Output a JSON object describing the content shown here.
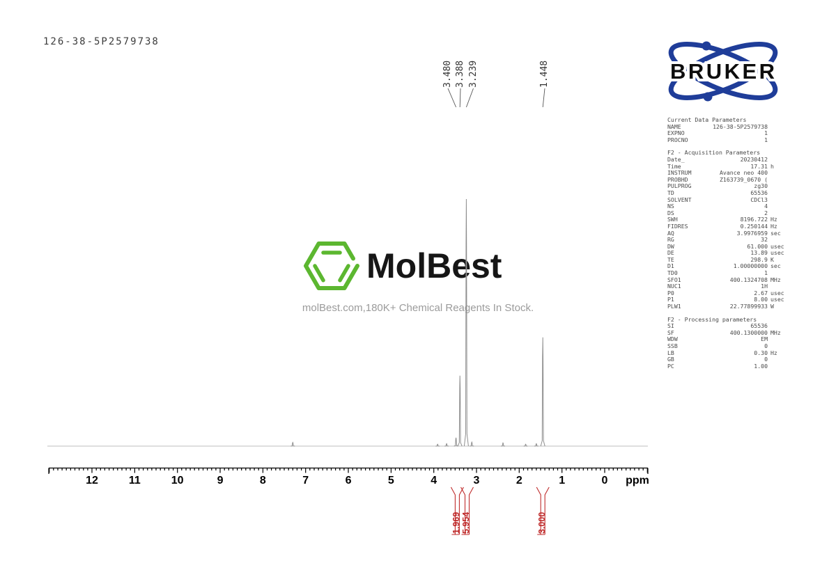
{
  "header": {
    "sample_id": "126-38-5P2579738"
  },
  "branding": {
    "bruker_wordmark": "BRUKER",
    "bruker_blue": "#1f3d99",
    "molbest_wordmark": "MolBest",
    "molbest_green": "#5cb730",
    "tagline": "molBest.com,180K+ Chemical Reagents In Stock."
  },
  "chart_data": {
    "type": "line",
    "title": "1H NMR spectrum 126-38-5P2579738",
    "xlabel": "ppm",
    "x_ticks": [
      12,
      11,
      10,
      9,
      8,
      7,
      6,
      5,
      4,
      3,
      2,
      1,
      0
    ],
    "x_range_ppm": [
      13.0,
      -1.0
    ],
    "grid": false,
    "trace_color": "#8e8e8e",
    "integral_color": "#bf2b2b",
    "peaks": [
      {
        "ppm": 7.3,
        "intensity": 0.015
      },
      {
        "ppm": 3.91,
        "intensity": 0.008
      },
      {
        "ppm": 3.7,
        "intensity": 0.01
      },
      {
        "ppm": 3.48,
        "intensity": 0.034
      },
      {
        "ppm": 3.388,
        "intensity": 0.285
      },
      {
        "ppm": 3.239,
        "intensity": 1.0
      },
      {
        "ppm": 3.11,
        "intensity": 0.016
      },
      {
        "ppm": 2.38,
        "intensity": 0.013
      },
      {
        "ppm": 1.85,
        "intensity": 0.008
      },
      {
        "ppm": 1.6,
        "intensity": 0.01
      },
      {
        "ppm": 1.448,
        "intensity": 0.44
      }
    ],
    "labeled_peaks": [
      "3.480",
      "3.388",
      "3.239",
      "1.448"
    ],
    "integrals": [
      {
        "value": "1.969",
        "ppm": 3.45
      },
      {
        "value": "5.954",
        "ppm": 3.22
      },
      {
        "value": "3.000",
        "ppm": 1.448
      }
    ]
  },
  "params": {
    "sections": [
      {
        "title": "Current Data Parameters",
        "rows": [
          {
            "l": "NAME",
            "v": "126-38-5P2579738",
            "u": ""
          },
          {
            "l": "EXPNO",
            "v": "1",
            "u": ""
          },
          {
            "l": "PROCNO",
            "v": "1",
            "u": ""
          }
        ]
      },
      {
        "title": "F2 - Acquisition Parameters",
        "rows": [
          {
            "l": "Date_",
            "v": "20230412",
            "u": ""
          },
          {
            "l": "Time",
            "v": "17.31",
            "u": "h"
          },
          {
            "l": "INSTRUM",
            "v": "Avance neo 400",
            "u": ""
          },
          {
            "l": "PROBHD",
            "v": "Z163739_0670 (",
            "u": ""
          },
          {
            "l": "PULPROG",
            "v": "zg30",
            "u": ""
          },
          {
            "l": "TD",
            "v": "65536",
            "u": ""
          },
          {
            "l": "SOLVENT",
            "v": "CDCl3",
            "u": ""
          },
          {
            "l": "NS",
            "v": "4",
            "u": ""
          },
          {
            "l": "DS",
            "v": "2",
            "u": ""
          },
          {
            "l": "SWH",
            "v": "8196.722",
            "u": "Hz"
          },
          {
            "l": "FIDRES",
            "v": "0.250144",
            "u": "Hz"
          },
          {
            "l": "AQ",
            "v": "3.9976959",
            "u": "sec"
          },
          {
            "l": "RG",
            "v": "32",
            "u": ""
          },
          {
            "l": "DW",
            "v": "61.000",
            "u": "usec"
          },
          {
            "l": "DE",
            "v": "13.89",
            "u": "usec"
          },
          {
            "l": "TE",
            "v": "298.9",
            "u": "K"
          },
          {
            "l": "D1",
            "v": "1.00000000",
            "u": "sec"
          },
          {
            "l": "TD0",
            "v": "1",
            "u": ""
          },
          {
            "l": "SFO1",
            "v": "400.1324708",
            "u": "MHz"
          },
          {
            "l": "NUC1",
            "v": "1H",
            "u": ""
          },
          {
            "l": "P0",
            "v": "2.67",
            "u": "usec"
          },
          {
            "l": "P1",
            "v": "8.00",
            "u": "usec"
          },
          {
            "l": "PLW1",
            "v": "22.77899933",
            "u": "W"
          }
        ]
      },
      {
        "title": "F2 - Processing parameters",
        "rows": [
          {
            "l": "SI",
            "v": "65536",
            "u": ""
          },
          {
            "l": "SF",
            "v": "400.1300000",
            "u": "MHz"
          },
          {
            "l": "WDW",
            "v": "EM",
            "u": ""
          },
          {
            "l": "SSB",
            "v": "0",
            "u": ""
          },
          {
            "l": "LB",
            "v": "0.30",
            "u": "Hz"
          },
          {
            "l": "GB",
            "v": "0",
            "u": ""
          },
          {
            "l": "PC",
            "v": "1.00",
            "u": ""
          }
        ]
      }
    ]
  }
}
